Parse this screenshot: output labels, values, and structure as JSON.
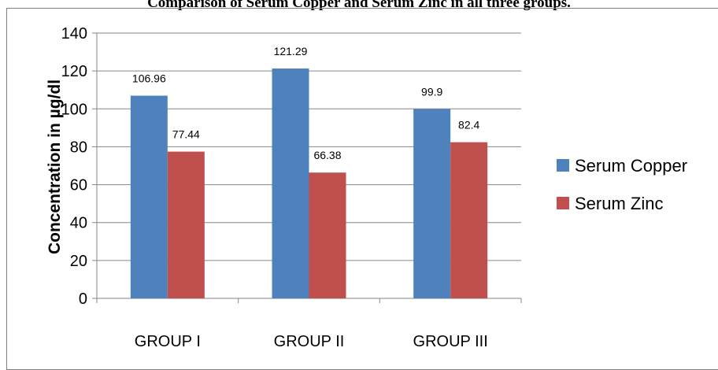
{
  "chart_data": {
    "type": "bar",
    "title": "Comparison of Serum Copper and Serum Zinc in all three groups.",
    "ylabel": "Concentration in µg/dl",
    "xlabel": "",
    "categories": [
      "GROUP I",
      "GROUP II",
      "GROUP III"
    ],
    "series": [
      {
        "name": "Serum Copper",
        "values": [
          106.96,
          121.29,
          99.9
        ],
        "color": "#4f81bd"
      },
      {
        "name": "Serum Zinc",
        "values": [
          77.44,
          66.38,
          82.4
        ],
        "color": "#c0504d"
      }
    ],
    "ylim": [
      0,
      140
    ],
    "yticks": [
      0,
      20,
      40,
      60,
      80,
      100,
      120,
      140
    ],
    "grid": true,
    "legend": "right"
  }
}
